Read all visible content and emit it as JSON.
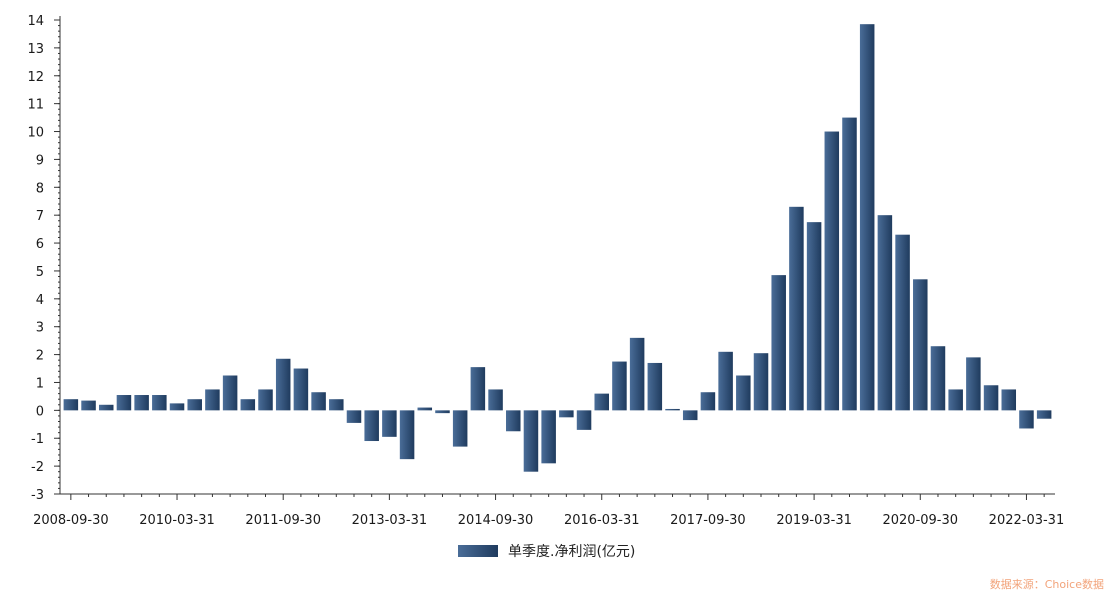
{
  "chart_data": {
    "type": "bar",
    "x_tick_labels": [
      "2008-09-30",
      "2010-03-31",
      "2011-09-30",
      "2013-03-31",
      "2014-09-30",
      "2016-03-31",
      "2017-09-30",
      "2019-03-31",
      "2020-09-30",
      "2022-03-31"
    ],
    "values": [
      0.4,
      0.35,
      0.2,
      0.55,
      0.55,
      0.55,
      0.25,
      0.4,
      0.75,
      1.25,
      0.4,
      0.75,
      1.85,
      1.5,
      0.65,
      0.4,
      -0.45,
      -1.1,
      -0.95,
      -1.75,
      0.1,
      -0.1,
      -1.3,
      1.55,
      0.75,
      -0.75,
      -2.2,
      -1.9,
      -0.25,
      -0.7,
      0.6,
      1.75,
      2.6,
      1.7,
      0.05,
      -0.35,
      0.65,
      2.1,
      1.25,
      2.05,
      4.85,
      7.3,
      6.75,
      10.0,
      10.5,
      13.85,
      7.0,
      6.3,
      4.7,
      2.3,
      0.75,
      1.9,
      0.9,
      0.75,
      -0.65,
      -0.3
    ],
    "ylim": [
      -3,
      14
    ],
    "y_ticks": [
      -3,
      -2,
      -1,
      0,
      1,
      2,
      3,
      4,
      5,
      6,
      7,
      8,
      9,
      10,
      11,
      12,
      13,
      14
    ],
    "grid": false,
    "series": [
      {
        "name": "单季度.净利润(亿元)"
      }
    ],
    "legend_position": "bottom-center",
    "bar_color": "#2a4a72"
  },
  "legend": {
    "label": "单季度.净利润(亿元)"
  },
  "source": "数据来源：Choice数据"
}
